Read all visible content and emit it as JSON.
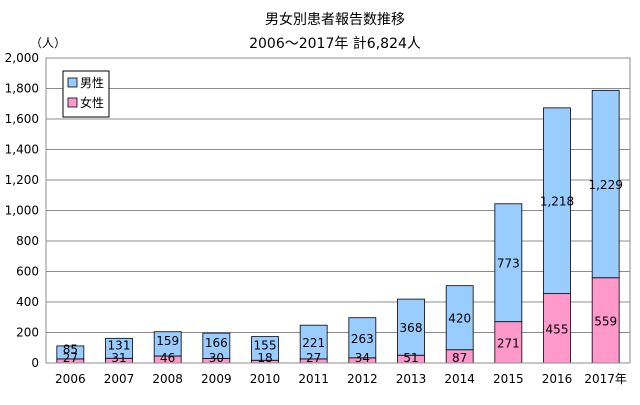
{
  "chart_data": {
    "type": "bar",
    "stacked": true,
    "title": "男女別患者報告数推移",
    "subtitle": "2006～2017年  計6,824人",
    "ylabel": "（人）",
    "ylim": [
      0,
      2000
    ],
    "yticks": [
      "0",
      "200",
      "400",
      "600",
      "800",
      "1,000",
      "1,200",
      "1,400",
      "1,600",
      "1,800",
      "2,000"
    ],
    "categories": [
      "2006",
      "2007",
      "2008",
      "2009",
      "2010",
      "2011",
      "2012",
      "2013",
      "2014",
      "2015",
      "2016",
      "2017年"
    ],
    "series": [
      {
        "name": "女性",
        "color": "#ff99cc",
        "values": [
          27,
          31,
          46,
          30,
          18,
          27,
          34,
          51,
          87,
          271,
          455,
          559
        ],
        "labels": [
          "27",
          "31",
          "46",
          "30",
          "18",
          "27",
          "34",
          "51",
          "87",
          "271",
          "455",
          "559"
        ]
      },
      {
        "name": "男性",
        "color": "#99ccff",
        "values": [
          85,
          131,
          159,
          166,
          155,
          221,
          263,
          368,
          420,
          773,
          1218,
          1229
        ],
        "labels": [
          "85",
          "131",
          "159",
          "166",
          "155",
          "221",
          "263",
          "368",
          "420",
          "773",
          "1,218",
          "1,229"
        ]
      }
    ],
    "legend": {
      "position": "top-left",
      "order": [
        "男性",
        "女性"
      ]
    },
    "grid": "horizontal"
  }
}
